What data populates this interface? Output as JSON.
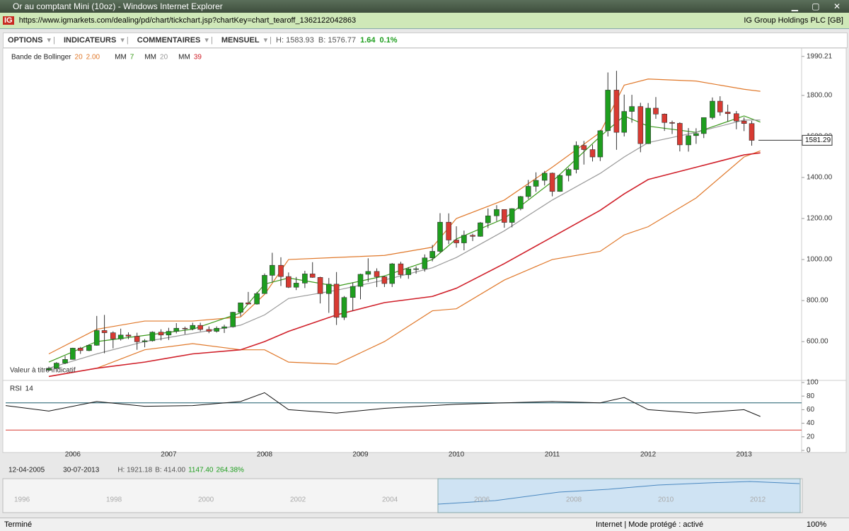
{
  "window": {
    "title": "Or au comptant Mini (10oz) - Windows Internet Explorer",
    "url": "https://www.igmarkets.com/dealing/pd/chart/tickchart.jsp?chartKey=chart_tearoff_1362122042863",
    "site_identity": "IG Group Holdings PLC [GB]"
  },
  "toolbar": {
    "menus": [
      "OPTIONS",
      "INDICATEURS",
      "COMMENTAIRES",
      "MENSUEL"
    ],
    "high": "H: 1583.93",
    "low": "B: 1576.77",
    "change": "1.64",
    "change_pct": "0.1%"
  },
  "chart_data": {
    "type": "candlestick",
    "x": [
      2005.75,
      2005.83,
      2005.92,
      2006,
      2006.08,
      2006.17,
      2006.25,
      2006.33,
      2006.42,
      2006.5,
      2006.58,
      2006.67,
      2006.75,
      2006.83,
      2006.92,
      2007,
      2007.08,
      2007.17,
      2007.25,
      2007.33,
      2007.42,
      2007.5,
      2007.58,
      2007.67,
      2007.75,
      2007.83,
      2007.92,
      2008,
      2008.08,
      2008.17,
      2008.25,
      2008.33,
      2008.42,
      2008.5,
      2008.58,
      2008.67,
      2008.75,
      2008.83,
      2008.92,
      2009,
      2009.08,
      2009.17,
      2009.25,
      2009.33,
      2009.42,
      2009.5,
      2009.58,
      2009.67,
      2009.75,
      2009.83,
      2009.92,
      2010,
      2010.08,
      2010.17,
      2010.25,
      2010.33,
      2010.42,
      2010.5,
      2010.58,
      2010.67,
      2010.75,
      2010.83,
      2010.92,
      2011,
      2011.08,
      2011.17,
      2011.25,
      2011.33,
      2011.42,
      2011.5,
      2011.58,
      2011.67,
      2011.75,
      2011.83,
      2011.92,
      2012,
      2012.08,
      2012.17,
      2012.25,
      2012.33,
      2012.42,
      2012.5,
      2012.58,
      2012.67,
      2012.75,
      2012.83,
      2012.92,
      2013,
      2013.08
    ],
    "open": [
      460,
      470,
      495,
      513,
      568,
      556,
      582,
      654,
      643,
      613,
      632,
      626,
      599,
      604,
      646,
      632,
      650,
      665,
      662,
      679,
      659,
      650,
      665,
      672,
      743,
      789,
      783,
      834,
      923,
      972,
      917,
      865,
      885,
      930,
      913,
      834,
      880,
      718,
      815,
      869,
      928,
      942,
      916,
      883,
      979,
      926,
      954,
      955,
      1008,
      1040,
      1182,
      1095,
      1081,
      1118,
      1113,
      1179,
      1213,
      1244,
      1181,
      1248,
      1307,
      1357,
      1386,
      1421,
      1332,
      1410,
      1439,
      1556,
      1536,
      1500,
      1628,
      1826,
      1620,
      1722,
      1746,
      1565,
      1738,
      1709,
      1668,
      1664,
      1559,
      1604,
      1614,
      1692,
      1772,
      1719,
      1711,
      1675,
      1663
    ],
    "high": [
      478,
      500,
      530,
      570,
      574,
      587,
      725,
      730,
      650,
      663,
      645,
      643,
      612,
      650,
      660,
      667,
      690,
      673,
      692,
      692,
      674,
      674,
      682,
      745,
      790,
      842,
      842,
      932,
      1033,
      1011,
      937,
      915,
      945,
      987,
      916,
      910,
      939,
      822,
      888,
      931,
      1006,
      957,
      920,
      983,
      989,
      963,
      967,
      1025,
      1071,
      1226,
      1225,
      1162,
      1141,
      1126,
      1183,
      1249,
      1265,
      1244,
      1250,
      1310,
      1388,
      1425,
      1432,
      1424,
      1415,
      1447,
      1576,
      1578,
      1560,
      1632,
      1912,
      1920,
      1804,
      1803,
      1764,
      1763,
      1792,
      1712,
      1677,
      1669,
      1641,
      1640,
      1693,
      1790,
      1796,
      1755,
      1724,
      1693,
      1676
    ],
    "low": [
      455,
      466,
      490,
      512,
      540,
      553,
      580,
      543,
      567,
      605,
      612,
      560,
      572,
      600,
      606,
      608,
      640,
      636,
      655,
      650,
      641,
      644,
      642,
      668,
      723,
      781,
      780,
      834,
      891,
      871,
      861,
      851,
      861,
      911,
      786,
      740,
      681,
      705,
      750,
      806,
      891,
      866,
      866,
      866,
      908,
      906,
      931,
      941,
      991,
      1033,
      1075,
      1058,
      1045,
      1090,
      1111,
      1153,
      1187,
      1155,
      1157,
      1240,
      1295,
      1330,
      1361,
      1308,
      1330,
      1381,
      1420,
      1463,
      1478,
      1480,
      1600,
      1535,
      1600,
      1667,
      1523,
      1563,
      1686,
      1627,
      1612,
      1527,
      1526,
      1564,
      1592,
      1683,
      1701,
      1673,
      1635,
      1626,
      1555
    ],
    "close": [
      470,
      495,
      513,
      568,
      556,
      582,
      654,
      643,
      613,
      632,
      626,
      599,
      604,
      646,
      632,
      650,
      665,
      662,
      679,
      659,
      650,
      665,
      672,
      743,
      789,
      783,
      834,
      923,
      972,
      917,
      865,
      885,
      930,
      913,
      834,
      880,
      718,
      815,
      869,
      928,
      942,
      916,
      883,
      979,
      926,
      954,
      955,
      1008,
      1040,
      1182,
      1095,
      1081,
      1118,
      1113,
      1179,
      1213,
      1244,
      1181,
      1248,
      1307,
      1357,
      1386,
      1421,
      1332,
      1410,
      1439,
      1556,
      1536,
      1500,
      1628,
      1826,
      1620,
      1722,
      1746,
      1565,
      1738,
      1709,
      1668,
      1664,
      1559,
      1604,
      1614,
      1692,
      1772,
      1719,
      1711,
      1675,
      1663,
      1581
    ],
    "up_color": "#1e9e1e",
    "down_color": "#d83a32",
    "xlim": [
      2005.3,
      2013.6
    ],
    "xticks": [
      2006,
      2007,
      2008,
      2009,
      2010,
      2011,
      2012,
      2013
    ],
    "ylim": [
      428,
      2017
    ],
    "yticks": [
      {
        "value": 600,
        "label": "600.00"
      },
      {
        "value": 800,
        "label": "800.00"
      },
      {
        "value": 1000,
        "label": "1000.00"
      },
      {
        "value": 1200,
        "label": "1200.00"
      },
      {
        "value": 1400,
        "label": "1400.00"
      },
      {
        "value": 1600,
        "label": "1600.00"
      },
      {
        "value": 1800,
        "label": "1800.00"
      },
      1990.21
    ],
    "last_price": 1581.29,
    "note": "Valeur à titre indicatif",
    "indicator_x": [
      2005.75,
      2006.25,
      2006.75,
      2007.25,
      2007.75,
      2008,
      2008.25,
      2008.75,
      2009.25,
      2009.75,
      2010,
      2010.5,
      2011,
      2011.5,
      2011.75,
      2012,
      2012.5,
      2013,
      2013.17
    ],
    "bollinger": {
      "label": "Bande de Bollinger",
      "period": 20,
      "mult": "2.00",
      "color": "#e0782a",
      "upper": [
        540,
        660,
        700,
        700,
        720,
        830,
        1000,
        1010,
        1020,
        1060,
        1200,
        1290,
        1450,
        1620,
        1850,
        1880,
        1870,
        1830,
        1820
      ],
      "lower": [
        430,
        470,
        560,
        590,
        560,
        560,
        500,
        490,
        600,
        750,
        760,
        900,
        1000,
        1040,
        1120,
        1160,
        1300,
        1500,
        1530
      ]
    },
    "moving_averages": [
      {
        "label": "MM",
        "period": 7,
        "color": "#3a9a1a",
        "values": [
          500,
          600,
          630,
          660,
          740,
          880,
          910,
          870,
          920,
          1000,
          1100,
          1200,
          1380,
          1600,
          1700,
          1650,
          1620,
          1700,
          1670
        ]
      },
      {
        "label": "MM",
        "period": 20,
        "color": "#999999",
        "values": [
          470,
          540,
          600,
          640,
          680,
          730,
          810,
          850,
          900,
          960,
          1010,
          1140,
          1290,
          1420,
          1500,
          1570,
          1620,
          1680,
          1680
        ]
      },
      {
        "label": "MM",
        "period": 39,
        "color": "#d0202a",
        "values": [
          430,
          470,
          500,
          540,
          560,
          600,
          650,
          730,
          790,
          820,
          860,
          980,
          1110,
          1240,
          1320,
          1390,
          1450,
          1510,
          1520
        ]
      }
    ],
    "rsi": {
      "type": "line",
      "label": "RSI",
      "period": 14,
      "color": "#111111",
      "x": [
        2005.3,
        2005.75,
        2006.25,
        2006.75,
        2007.25,
        2007.75,
        2008,
        2008.25,
        2008.75,
        2009.25,
        2009.75,
        2010,
        2010.5,
        2011,
        2011.5,
        2011.75,
        2012,
        2012.5,
        2013,
        2013.17
      ],
      "values": [
        66,
        58,
        72,
        65,
        66,
        72,
        85,
        60,
        55,
        62,
        66,
        68,
        70,
        72,
        70,
        78,
        60,
        55,
        60,
        50
      ],
      "ylim": [
        0,
        100
      ],
      "yticks": [
        0,
        20,
        40,
        60,
        80,
        100
      ],
      "levels": [
        {
          "value": 70,
          "color": "#1a5a6a"
        },
        {
          "value": 30,
          "color": "#d83a32"
        }
      ]
    }
  },
  "footer": {
    "start": "12-04-2005",
    "end": "30-07-2013",
    "high": "H: 1921.18",
    "low": "B: 414.00",
    "change": "1147.40",
    "change_pct": "264.38%"
  },
  "navigator": {
    "years": [
      "1996",
      "1998",
      "2000",
      "2002",
      "2004",
      "2006",
      "2008",
      "2010",
      "2012"
    ]
  },
  "status": {
    "left": "Terminé",
    "zone": "Internet | Mode protégé : activé",
    "zoom": "100%"
  }
}
